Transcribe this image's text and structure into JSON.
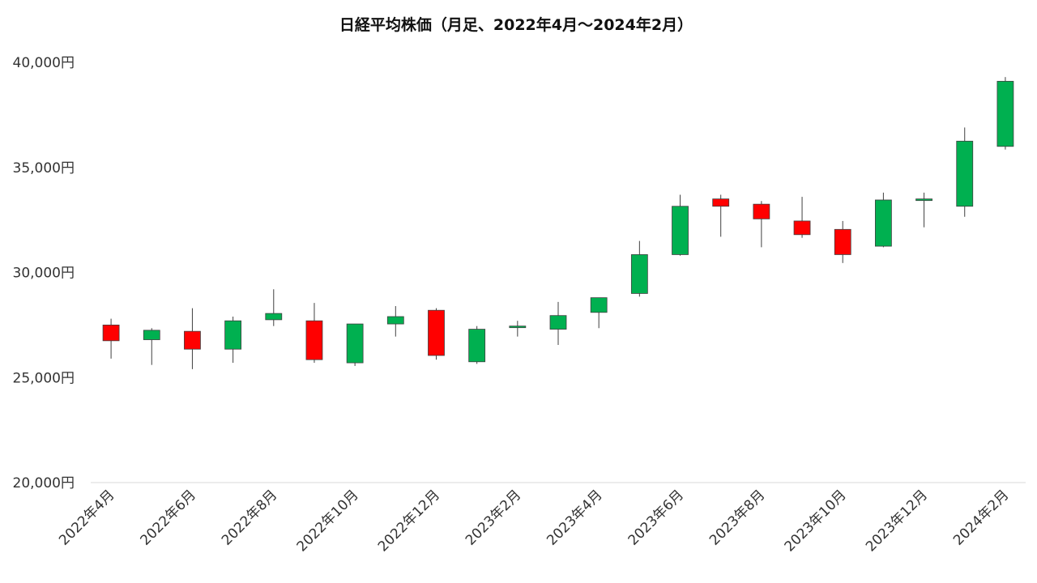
{
  "chart_data": {
    "type": "candlestick",
    "title": "日経平均株価（月足、2022年4月～2024年2月）",
    "xlabel": "",
    "ylabel": "",
    "ylim": [
      20000,
      40000
    ],
    "yticks": [
      20000,
      25000,
      30000,
      35000,
      40000
    ],
    "ytick_labels": [
      "20,000円",
      "25,000円",
      "30,000円",
      "35,000円",
      "40,000円"
    ],
    "up_color": "#00b050",
    "down_color": "#ff0000",
    "grid": false,
    "legend": "none",
    "categories": [
      "2022年4月",
      "2022年5月",
      "2022年6月",
      "2022年7月",
      "2022年8月",
      "2022年9月",
      "2022年10月",
      "2022年11月",
      "2022年12月",
      "2023年1月",
      "2023年2月",
      "2023年3月",
      "2023年4月",
      "2023年5月",
      "2023年6月",
      "2023年7月",
      "2023年8月",
      "2023年9月",
      "2023年10月",
      "2023年11月",
      "2023年12月",
      "2024年1月",
      "2024年2月"
    ],
    "xtick_labels": [
      "2022年4月",
      "2022年6月",
      "2022年8月",
      "2022年10月",
      "2022年12月",
      "2023年2月",
      "2023年4月",
      "2023年6月",
      "2023年8月",
      "2023年10月",
      "2023年12月",
      "2024年2月"
    ],
    "ohlc": [
      {
        "x": "2022年4月",
        "open": 27500,
        "high": 27800,
        "low": 25900,
        "close": 26750
      },
      {
        "x": "2022年5月",
        "open": 26800,
        "high": 27350,
        "low": 25600,
        "close": 27250
      },
      {
        "x": "2022年6月",
        "open": 27200,
        "high": 28300,
        "low": 25400,
        "close": 26350
      },
      {
        "x": "2022年7月",
        "open": 26350,
        "high": 27900,
        "low": 25700,
        "close": 27700
      },
      {
        "x": "2022年8月",
        "open": 27750,
        "high": 29200,
        "low": 27450,
        "close": 28050
      },
      {
        "x": "2022年9月",
        "open": 27700,
        "high": 28550,
        "low": 25700,
        "close": 25850
      },
      {
        "x": "2022年10月",
        "open": 25700,
        "high": 27550,
        "low": 25550,
        "close": 27550
      },
      {
        "x": "2022年11月",
        "open": 27550,
        "high": 28400,
        "low": 26950,
        "close": 27900
      },
      {
        "x": "2022年12月",
        "open": 28200,
        "high": 28300,
        "low": 25850,
        "close": 26050
      },
      {
        "x": "2023年1月",
        "open": 25750,
        "high": 27450,
        "low": 25650,
        "close": 27300
      },
      {
        "x": "2023年2月",
        "open": 27400,
        "high": 27700,
        "low": 26950,
        "close": 27450
      },
      {
        "x": "2023年3月",
        "open": 27300,
        "high": 28600,
        "low": 26550,
        "close": 27950
      },
      {
        "x": "2023年4月",
        "open": 28100,
        "high": 28800,
        "low": 27350,
        "close": 28800
      },
      {
        "x": "2023年5月",
        "open": 29000,
        "high": 31500,
        "low": 28850,
        "close": 30850
      },
      {
        "x": "2023年6月",
        "open": 30850,
        "high": 33700,
        "low": 30800,
        "close": 33150
      },
      {
        "x": "2023年7月",
        "open": 33500,
        "high": 33700,
        "low": 31700,
        "close": 33150
      },
      {
        "x": "2023年8月",
        "open": 33250,
        "high": 33400,
        "low": 31200,
        "close": 32550
      },
      {
        "x": "2023年9月",
        "open": 32450,
        "high": 33600,
        "low": 31650,
        "close": 31800
      },
      {
        "x": "2023年10月",
        "open": 32050,
        "high": 32450,
        "low": 30450,
        "close": 30850
      },
      {
        "x": "2023年11月",
        "open": 31250,
        "high": 33800,
        "low": 31200,
        "close": 33450
      },
      {
        "x": "2023年12月",
        "open": 33450,
        "high": 33800,
        "low": 32150,
        "close": 33500
      },
      {
        "x": "2024年1月",
        "open": 33150,
        "high": 36900,
        "low": 32650,
        "close": 36250
      },
      {
        "x": "2024年2月",
        "open": 36000,
        "high": 39300,
        "low": 35850,
        "close": 39100
      }
    ]
  }
}
